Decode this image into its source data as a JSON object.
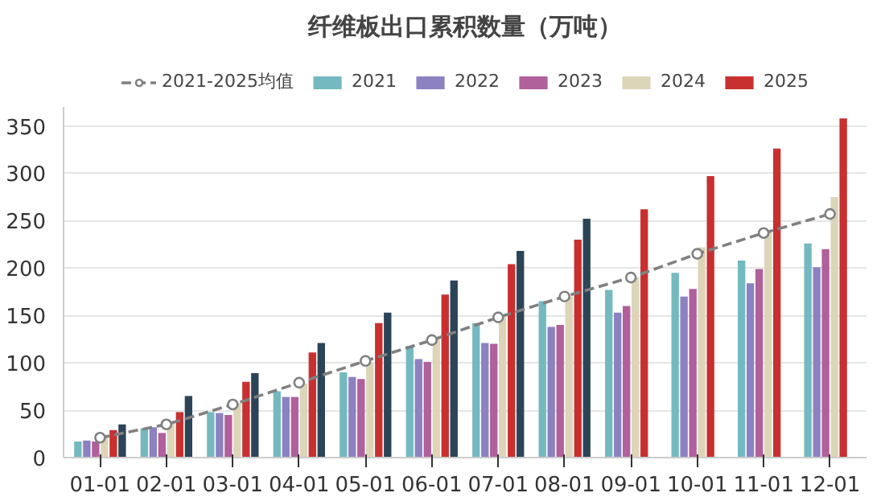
{
  "chart_data": {
    "type": "bar",
    "title": "纤维板出口累积数量（万吨）",
    "categories": [
      "01-01",
      "02-01",
      "03-01",
      "04-01",
      "05-01",
      "06-01",
      "07-01",
      "08-01",
      "09-01",
      "10-01",
      "11-01",
      "12-01"
    ],
    "series": [
      {
        "name": "2021-2025均值",
        "type": "line",
        "color": "#808080",
        "marker": "circle",
        "line_style": "dashed",
        "values": [
          21,
          35,
          56,
          79,
          102,
          124,
          148,
          170,
          190,
          215,
          237,
          257
        ]
      },
      {
        "name": "2021",
        "color": "#74b9c0",
        "values": [
          17,
          31,
          48,
          70,
          90,
          118,
          142,
          165,
          177,
          195,
          208,
          226
        ]
      },
      {
        "name": "2022",
        "color": "#8c82c2",
        "values": [
          18,
          32,
          47,
          64,
          85,
          104,
          121,
          138,
          153,
          170,
          184,
          201
        ]
      },
      {
        "name": "2023",
        "color": "#b0609a",
        "values": [
          17,
          26,
          45,
          64,
          83,
          101,
          120,
          140,
          160,
          178,
          199,
          220
        ]
      },
      {
        "name": "2024",
        "color": "#ddd5b8",
        "values": [
          22,
          38,
          58,
          78,
          100,
          125,
          148,
          170,
          190,
          222,
          240,
          275
        ]
      },
      {
        "name": "2025",
        "color": "#c83030",
        "values": [
          29,
          48,
          80,
          111,
          142,
          172,
          204,
          230,
          262,
          297,
          326,
          358
        ]
      },
      {
        "color": "#2c4458",
        "values": [
          35,
          65,
          89,
          121,
          153,
          187,
          218,
          252,
          null,
          null,
          null,
          null
        ]
      }
    ],
    "ylim": [
      0,
      370
    ],
    "yticks": [
      0,
      50,
      100,
      150,
      200,
      250,
      300,
      350
    ],
    "grid": "y",
    "legend": "top"
  }
}
